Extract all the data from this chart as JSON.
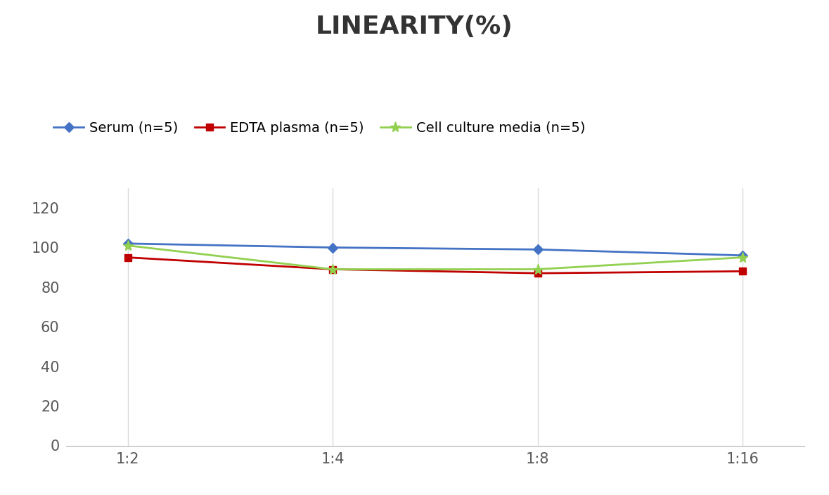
{
  "title": "LINEARITY(%)",
  "x_labels": [
    "1:2",
    "1:4",
    "1:8",
    "1:16"
  ],
  "x_positions": [
    0,
    1,
    2,
    3
  ],
  "series": [
    {
      "label": "Serum (n=5)",
      "values": [
        102,
        100,
        99,
        96
      ],
      "color": "#4472C4",
      "marker": "D",
      "markersize": 7,
      "linewidth": 2
    },
    {
      "label": "EDTA plasma (n=5)",
      "values": [
        95,
        89,
        87,
        88
      ],
      "color": "#C00000",
      "marker": "s",
      "markersize": 7,
      "linewidth": 2
    },
    {
      "label": "Cell culture media (n=5)",
      "values": [
        101,
        89,
        89,
        95
      ],
      "color": "#92D050",
      "marker": "*",
      "markersize": 11,
      "linewidth": 2
    }
  ],
  "ylim": [
    0,
    130
  ],
  "yticks": [
    0,
    20,
    40,
    60,
    80,
    100,
    120
  ],
  "background_color": "#ffffff",
  "grid_color": "#d9d9d9",
  "title_fontsize": 26,
  "tick_fontsize": 15,
  "legend_fontsize": 14
}
